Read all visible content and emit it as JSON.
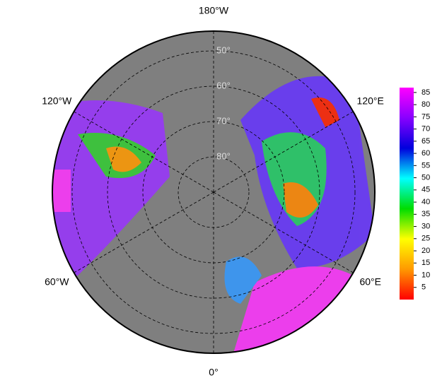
{
  "chart_data": {
    "type": "polar-map",
    "center_lat": 90,
    "meridians": [
      {
        "value": 180,
        "label": "180°W"
      },
      {
        "value": -120,
        "label": "120°W"
      },
      {
        "value": 120,
        "label": "120°E"
      },
      {
        "value": -60,
        "label": "60°W"
      },
      {
        "value": 60,
        "label": "60°E"
      },
      {
        "value": 0,
        "label": "0°"
      }
    ],
    "parallels": [
      {
        "value": 50,
        "label": "50°"
      },
      {
        "value": 60,
        "label": "60°"
      },
      {
        "value": 70,
        "label": "70°"
      },
      {
        "value": 80,
        "label": "80°"
      }
    ],
    "clim": [
      0,
      87
    ],
    "cticks": [
      5,
      10,
      15,
      20,
      25,
      30,
      35,
      40,
      45,
      50,
      55,
      60,
      65,
      70,
      75,
      80,
      85
    ],
    "colormap": [
      "#ff0000",
      "#ff9900",
      "#ffff00",
      "#00dd00",
      "#00ffff",
      "#0000dd",
      "#8800ff",
      "#ff00ff"
    ]
  }
}
